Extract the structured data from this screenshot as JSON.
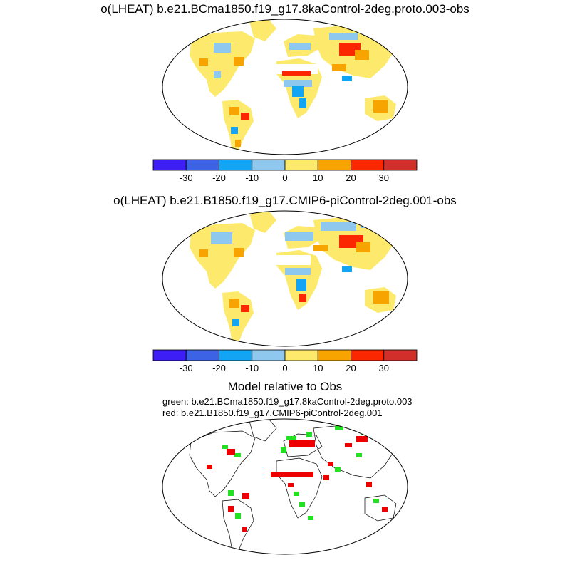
{
  "panels": [
    {
      "title": "o(LHEAT) b.e21.BCma1850.f19_g17.8kaControl-2deg.proto.003-obs",
      "colorbar": {
        "colors": [
          "#3d1ef5",
          "#3c63e3",
          "#13a4f4",
          "#8fc8ef",
          "#fde96b",
          "#f7a400",
          "#fb2700",
          "#d02f2a"
        ],
        "tick_labels": [
          "-30",
          "-20",
          "-10",
          "0",
          "10",
          "20",
          "30"
        ]
      }
    },
    {
      "title": "o(LHEAT) b.e21.B1850.f19_g17.CMIP6-piControl-2deg.001-obs",
      "colorbar": {
        "colors": [
          "#3d1ef5",
          "#3c63e3",
          "#13a4f4",
          "#8fc8ef",
          "#fde96b",
          "#f7a400",
          "#fb2700",
          "#d02f2a"
        ],
        "tick_labels": [
          "-30",
          "-20",
          "-10",
          "0",
          "10",
          "20",
          "30"
        ]
      }
    },
    {
      "title": "Model relative to Obs",
      "legend_lines": [
        "green: b.e21.BCma1850.f19_g17.8kaControl-2deg.proto.003",
        "red: b.e21.B1850.f19_g17.CMIP6-piControl-2deg.001"
      ],
      "colors": {
        "green": "#22e022",
        "red": "#ee0000"
      }
    }
  ]
}
